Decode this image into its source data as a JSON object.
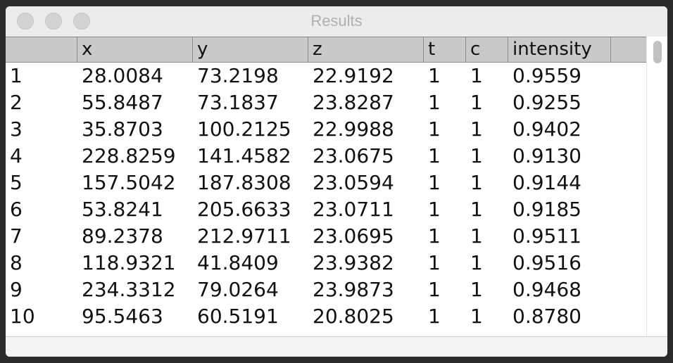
{
  "window": {
    "title": "Results"
  },
  "table": {
    "columns": [
      "",
      "x",
      "y",
      "z",
      "t",
      "c",
      "intensity"
    ],
    "rows": [
      [
        "1",
        "28.0084",
        "73.2198",
        "22.9192",
        "1",
        "1",
        "0.9559"
      ],
      [
        "2",
        "55.8487",
        "73.1837",
        "23.8287",
        "1",
        "1",
        "0.9255"
      ],
      [
        "3",
        "35.8703",
        "100.2125",
        "22.9988",
        "1",
        "1",
        "0.9402"
      ],
      [
        "4",
        "228.8259",
        "141.4582",
        "23.0675",
        "1",
        "1",
        "0.9130"
      ],
      [
        "5",
        "157.5042",
        "187.8308",
        "23.0594",
        "1",
        "1",
        "0.9144"
      ],
      [
        "6",
        "53.8241",
        "205.6633",
        "23.0711",
        "1",
        "1",
        "0.9185"
      ],
      [
        "7",
        "89.2378",
        "212.9711",
        "23.0695",
        "1",
        "1",
        "0.9511"
      ],
      [
        "8",
        "118.9321",
        "41.8409",
        "23.9382",
        "1",
        "1",
        "0.9516"
      ],
      [
        "9",
        "234.3312",
        "79.0264",
        "23.9873",
        "1",
        "1",
        "0.9468"
      ],
      [
        "10",
        "95.5463",
        "60.5191",
        "20.8025",
        "1",
        "1",
        "0.8780"
      ]
    ]
  }
}
